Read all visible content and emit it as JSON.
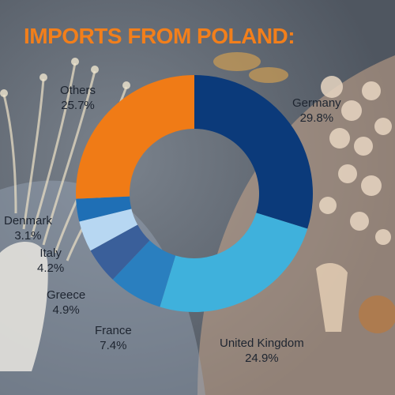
{
  "chart_data": {
    "type": "pie",
    "title": "IMPORTS FROM POLAND:",
    "categories": [
      "Germany",
      "United Kingdom",
      "France",
      "Greece",
      "Italy",
      "Denmark",
      "Others"
    ],
    "values": [
      29.8,
      24.9,
      7.4,
      4.9,
      4.2,
      3.1,
      25.7
    ],
    "value_labels": [
      "29.8%",
      "24.9%",
      "7.4%",
      "4.9%",
      "4.2%",
      "3.1%",
      "25.7%"
    ],
    "colors": [
      "#0b3a7a",
      "#3fb1dc",
      "#2a7fbf",
      "#3a5f9a",
      "#b7d7f2",
      "#1f6fb5",
      "#f07b16"
    ],
    "donut": true,
    "legend": "none",
    "title_color": "#f27f1b"
  }
}
